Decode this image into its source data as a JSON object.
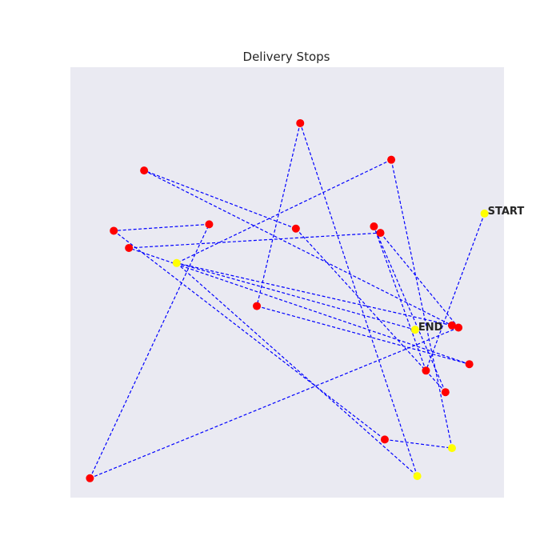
{
  "chart_data": {
    "type": "scatter",
    "title": "Delivery Stops",
    "xlabel": "",
    "ylabel": "",
    "xlim": [
      0,
      100
    ],
    "ylim": [
      0,
      100
    ],
    "grid": false,
    "colors": {
      "background": "#eaeaf2",
      "route": "#0000ff",
      "stop": "#ff0000",
      "special": "#ffff00"
    },
    "route_order": [
      [
        95.5,
        66.0
      ],
      [
        82.0,
        29.5
      ],
      [
        70.0,
        63.0
      ],
      [
        86.5,
        24.5
      ],
      [
        52.0,
        62.5
      ],
      [
        17.0,
        76.0
      ],
      [
        88.0,
        40.0
      ],
      [
        24.5,
        54.5
      ],
      [
        80.0,
        5.0
      ],
      [
        53.0,
        87.0
      ],
      [
        43.0,
        44.5
      ],
      [
        92.0,
        31.0
      ],
      [
        13.5,
        58.0
      ],
      [
        71.5,
        61.5
      ],
      [
        89.5,
        39.5
      ],
      [
        4.5,
        4.5
      ],
      [
        32.0,
        63.5
      ],
      [
        10.0,
        62.0
      ],
      [
        72.5,
        13.5
      ],
      [
        88.0,
        11.5
      ],
      [
        74.0,
        78.5
      ],
      [
        24.5,
        54.5
      ],
      [
        79.5,
        39.0
      ]
    ],
    "stops": [
      {
        "x": 95.5,
        "y": 66.0,
        "kind": "special",
        "label": "START"
      },
      {
        "x": 82.0,
        "y": 29.5,
        "kind": "stop",
        "label": ""
      },
      {
        "x": 70.0,
        "y": 63.0,
        "kind": "stop",
        "label": ""
      },
      {
        "x": 86.5,
        "y": 24.5,
        "kind": "stop",
        "label": ""
      },
      {
        "x": 52.0,
        "y": 62.5,
        "kind": "stop",
        "label": ""
      },
      {
        "x": 17.0,
        "y": 76.0,
        "kind": "stop",
        "label": ""
      },
      {
        "x": 88.0,
        "y": 40.0,
        "kind": "stop",
        "label": ""
      },
      {
        "x": 24.5,
        "y": 54.5,
        "kind": "special",
        "label": ""
      },
      {
        "x": 80.0,
        "y": 5.0,
        "kind": "special",
        "label": ""
      },
      {
        "x": 53.0,
        "y": 87.0,
        "kind": "stop",
        "label": ""
      },
      {
        "x": 43.0,
        "y": 44.5,
        "kind": "stop",
        "label": ""
      },
      {
        "x": 92.0,
        "y": 31.0,
        "kind": "stop",
        "label": ""
      },
      {
        "x": 13.5,
        "y": 58.0,
        "kind": "stop",
        "label": ""
      },
      {
        "x": 71.5,
        "y": 61.5,
        "kind": "stop",
        "label": ""
      },
      {
        "x": 89.5,
        "y": 39.5,
        "kind": "stop",
        "label": ""
      },
      {
        "x": 4.5,
        "y": 4.5,
        "kind": "stop",
        "label": ""
      },
      {
        "x": 32.0,
        "y": 63.5,
        "kind": "stop",
        "label": ""
      },
      {
        "x": 10.0,
        "y": 62.0,
        "kind": "stop",
        "label": ""
      },
      {
        "x": 72.5,
        "y": 13.5,
        "kind": "stop",
        "label": ""
      },
      {
        "x": 88.0,
        "y": 11.5,
        "kind": "special",
        "label": ""
      },
      {
        "x": 74.0,
        "y": 78.5,
        "kind": "stop",
        "label": ""
      },
      {
        "x": 79.5,
        "y": 39.0,
        "kind": "special",
        "label": "END"
      }
    ]
  }
}
